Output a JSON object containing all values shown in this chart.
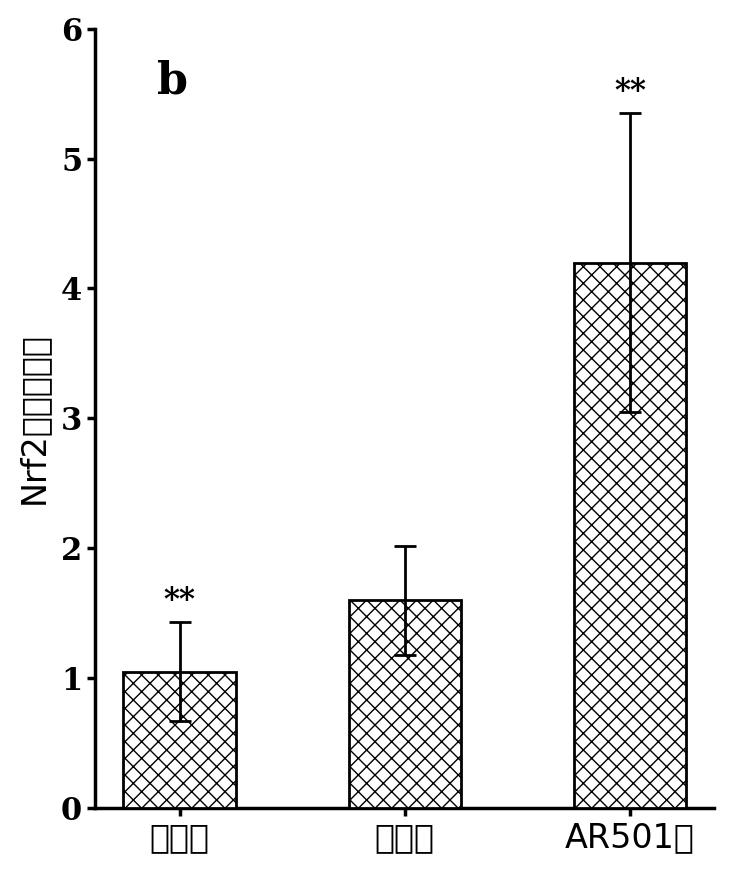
{
  "categories": [
    "正常组",
    "模型组",
    "AR501组"
  ],
  "values": [
    1.05,
    1.6,
    4.2
  ],
  "errors": [
    0.38,
    0.42,
    1.15
  ],
  "bar_color": "#ffffff",
  "bar_edgecolor": "#000000",
  "hatch": "xx",
  "ylabel": "Nrf2相对表达量",
  "ylim": [
    0,
    6
  ],
  "yticks": [
    0,
    1,
    2,
    3,
    4,
    5,
    6
  ],
  "annotations": [
    "**",
    null,
    "**"
  ],
  "panel_label": "b",
  "bar_width": 0.5,
  "figsize": [
    7.31,
    8.71
  ],
  "title_fontsize": 32,
  "label_fontsize": 24,
  "tick_fontsize": 22,
  "annot_fontsize": 22,
  "xlabel_fontsize": 24
}
